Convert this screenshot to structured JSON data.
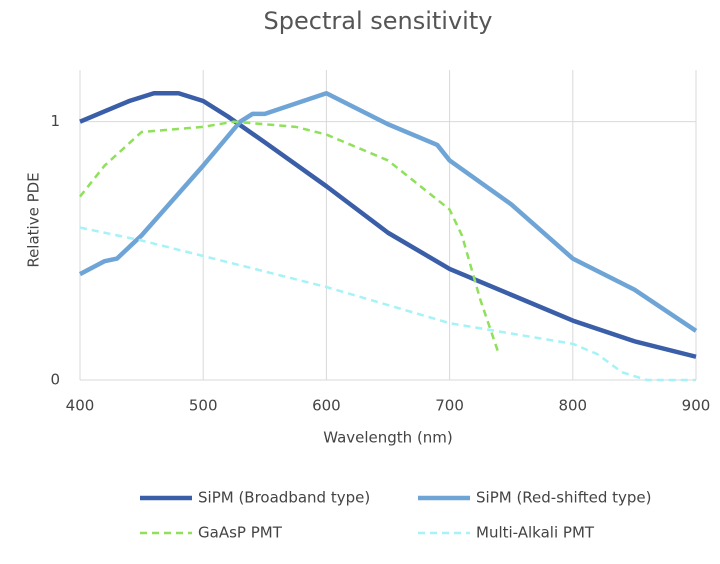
{
  "chart_data": {
    "type": "line",
    "title": "Spectral sensitivity",
    "xlabel": "Wavelength (nm)",
    "ylabel": "Relative PDE",
    "xlim": [
      400,
      900
    ],
    "xticks": [
      400,
      500,
      600,
      700,
      800,
      900
    ],
    "ylim": [
      0,
      1.2
    ],
    "yticks": [
      0,
      1
    ],
    "grid": true,
    "legend": "bottom",
    "series": [
      {
        "name": "SiPM (Broadband type)",
        "color": "#3a5ea8",
        "dash": false,
        "x": [
          400,
          420,
          440,
          460,
          480,
          500,
          520,
          550,
          600,
          650,
          700,
          750,
          800,
          850,
          900
        ],
        "values": [
          1.0,
          1.04,
          1.08,
          1.11,
          1.11,
          1.08,
          1.02,
          0.92,
          0.75,
          0.57,
          0.43,
          0.33,
          0.23,
          0.15,
          0.09
        ]
      },
      {
        "name": "SiPM (Red-shifted type)",
        "color": "#6fa5d6",
        "dash": false,
        "x": [
          400,
          420,
          430,
          450,
          500,
          530,
          540,
          550,
          600,
          650,
          690,
          700,
          750,
          800,
          850,
          900
        ],
        "values": [
          0.41,
          0.46,
          0.47,
          0.56,
          0.83,
          1.0,
          1.03,
          1.03,
          1.11,
          0.99,
          0.91,
          0.85,
          0.68,
          0.47,
          0.35,
          0.19
        ]
      },
      {
        "name": "GaAsP PMT",
        "color": "#8fe05a",
        "dash": true,
        "x": [
          400,
          420,
          450,
          500,
          525,
          575,
          600,
          650,
          700,
          710,
          725,
          740
        ],
        "values": [
          0.71,
          0.83,
          0.96,
          0.98,
          1.0,
          0.98,
          0.95,
          0.85,
          0.66,
          0.56,
          0.31,
          0.1
        ]
      },
      {
        "name": "Multi-Alkali PMT",
        "color": "#a5f3f7",
        "dash": true,
        "x": [
          400,
          450,
          500,
          600,
          700,
          750,
          800,
          820,
          840,
          860,
          900
        ],
        "values": [
          0.59,
          0.54,
          0.48,
          0.36,
          0.22,
          0.18,
          0.14,
          0.1,
          0.03,
          0.0,
          0.0
        ]
      }
    ]
  }
}
